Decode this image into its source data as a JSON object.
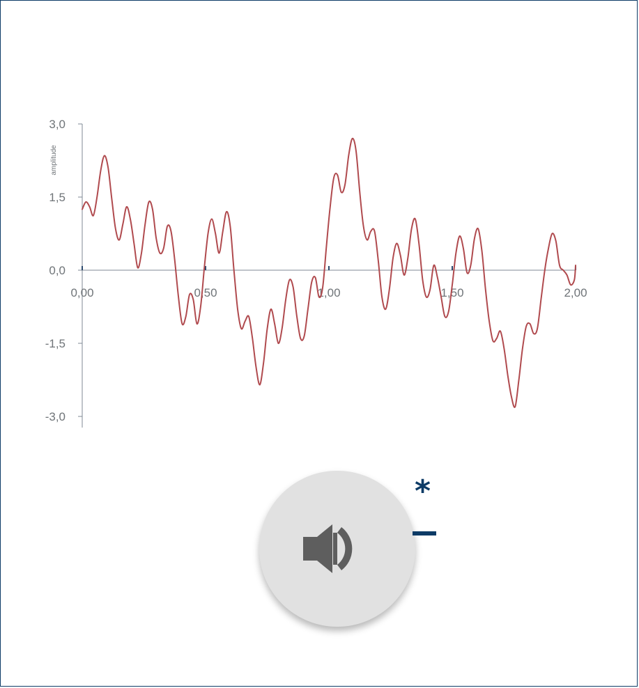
{
  "chart_data": {
    "type": "line",
    "title": "",
    "xlabel": "",
    "ylabel": "amplitude",
    "xlim": [
      0,
      2
    ],
    "ylim": [
      -3,
      3
    ],
    "x_ticks": [
      "0,00",
      "0,50",
      "1,00",
      "1,50",
      "2,00"
    ],
    "y_ticks": [
      "3,0",
      "1,5",
      "0,0",
      "-1,5",
      "-3,0"
    ],
    "grid": false,
    "legend": "none",
    "series": [
      {
        "color": "#b04a4e",
        "x": [
          0.0,
          0.015,
          0.03,
          0.045,
          0.06,
          0.075,
          0.09,
          0.105,
          0.12,
          0.135,
          0.15,
          0.165,
          0.18,
          0.195,
          0.21,
          0.225,
          0.24,
          0.255,
          0.27,
          0.285,
          0.3,
          0.315,
          0.33,
          0.345,
          0.36,
          0.375,
          0.39,
          0.405,
          0.42,
          0.435,
          0.45,
          0.465,
          0.48,
          0.495,
          0.51,
          0.525,
          0.54,
          0.555,
          0.57,
          0.585,
          0.6,
          0.615,
          0.63,
          0.645,
          0.66,
          0.675,
          0.69,
          0.705,
          0.72,
          0.735,
          0.75,
          0.765,
          0.78,
          0.795,
          0.81,
          0.825,
          0.84,
          0.855,
          0.87,
          0.885,
          0.9,
          0.915,
          0.93,
          0.945,
          0.96,
          0.975,
          0.99,
          1.005,
          1.02,
          1.035,
          1.05,
          1.065,
          1.08,
          1.095,
          1.11,
          1.125,
          1.14,
          1.155,
          1.17,
          1.185,
          1.2,
          1.215,
          1.23,
          1.245,
          1.26,
          1.275,
          1.29,
          1.305,
          1.32,
          1.335,
          1.35,
          1.365,
          1.38,
          1.395,
          1.41,
          1.425,
          1.44,
          1.455,
          1.47,
          1.485,
          1.5,
          1.515,
          1.53,
          1.545,
          1.56,
          1.575,
          1.59,
          1.605,
          1.62,
          1.635,
          1.65,
          1.665,
          1.68,
          1.695,
          1.71,
          1.725,
          1.74,
          1.755,
          1.77,
          1.785,
          1.8,
          1.815,
          1.83,
          1.845,
          1.86,
          1.875,
          1.89,
          1.905,
          1.92,
          1.935,
          1.95,
          1.965,
          1.98,
          1.995,
          2.0
        ],
        "y": [
          1.25,
          1.4,
          1.3,
          1.12,
          1.5,
          2.05,
          2.35,
          2.1,
          1.45,
          0.85,
          0.62,
          0.95,
          1.3,
          1.05,
          0.55,
          0.05,
          0.35,
          0.95,
          1.4,
          1.25,
          0.65,
          0.35,
          0.45,
          0.9,
          0.8,
          0.2,
          -0.55,
          -1.1,
          -0.95,
          -0.5,
          -0.6,
          -1.1,
          -0.75,
          0.05,
          0.75,
          1.05,
          0.75,
          0.35,
          0.8,
          1.2,
          0.9,
          0.0,
          -0.8,
          -1.2,
          -1.05,
          -0.95,
          -1.4,
          -2.0,
          -2.35,
          -1.9,
          -1.2,
          -0.8,
          -1.1,
          -1.5,
          -1.2,
          -0.6,
          -0.2,
          -0.35,
          -0.95,
          -1.4,
          -1.35,
          -0.8,
          -0.25,
          -0.15,
          -0.55,
          -0.35,
          0.5,
          1.3,
          1.9,
          1.95,
          1.6,
          1.75,
          2.35,
          2.7,
          2.45,
          1.6,
          0.9,
          0.62,
          0.8,
          0.8,
          0.2,
          -0.55,
          -0.8,
          -0.4,
          0.25,
          0.55,
          0.3,
          -0.1,
          0.25,
          0.85,
          1.05,
          0.55,
          -0.2,
          -0.55,
          -0.4,
          0.1,
          -0.15,
          -0.55,
          -0.95,
          -0.85,
          -0.3,
          0.35,
          0.7,
          0.45,
          -0.05,
          0.1,
          0.65,
          0.85,
          0.4,
          -0.4,
          -1.05,
          -1.45,
          -1.4,
          -1.25,
          -1.6,
          -2.15,
          -2.6,
          -2.8,
          -2.25,
          -1.6,
          -1.15,
          -1.1,
          -1.3,
          -1.2,
          -0.6,
          0.0,
          0.45,
          0.75,
          0.6,
          0.1,
          0.0,
          -0.1,
          -0.3,
          -0.2,
          0.1
        ]
      }
    ]
  },
  "controls": {
    "play_icon": "speaker-icon",
    "star_mark": "*",
    "accent_color": "#0d3b66"
  }
}
